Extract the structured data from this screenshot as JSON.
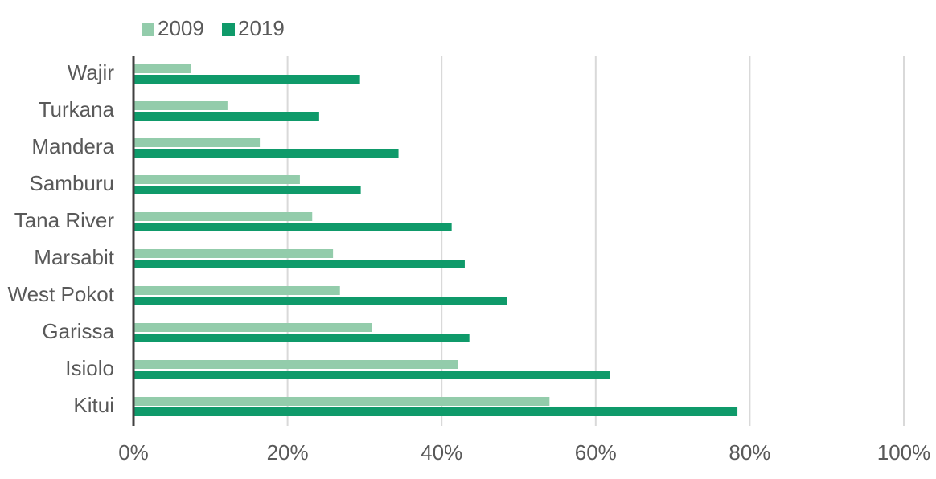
{
  "chart_data": {
    "type": "bar",
    "orientation": "horizontal",
    "categories": [
      "Wajir",
      "Turkana",
      "Mandera",
      "Samburu",
      "Tana River",
      "Marsabit",
      "West Pokot",
      "Garissa",
      "Isiolo",
      "Kitui"
    ],
    "series": [
      {
        "name": "2009",
        "color": "#93ccab",
        "values": [
          7.5,
          12.2,
          16.4,
          21.6,
          23.2,
          25.9,
          26.8,
          31.0,
          42.1,
          54.0
        ]
      },
      {
        "name": "2019",
        "color": "#0f9a6a",
        "values": [
          29.4,
          24.1,
          34.4,
          29.5,
          41.3,
          43.0,
          48.5,
          43.6,
          61.8,
          78.4
        ]
      }
    ],
    "xlim": [
      0,
      100
    ],
    "xticks": [
      "0%",
      "20%",
      "40%",
      "60%",
      "80%",
      "100%"
    ],
    "x_unit": "%",
    "grid": "vertical",
    "legend_position": "top-left",
    "title": "",
    "xlabel": "",
    "ylabel": ""
  }
}
